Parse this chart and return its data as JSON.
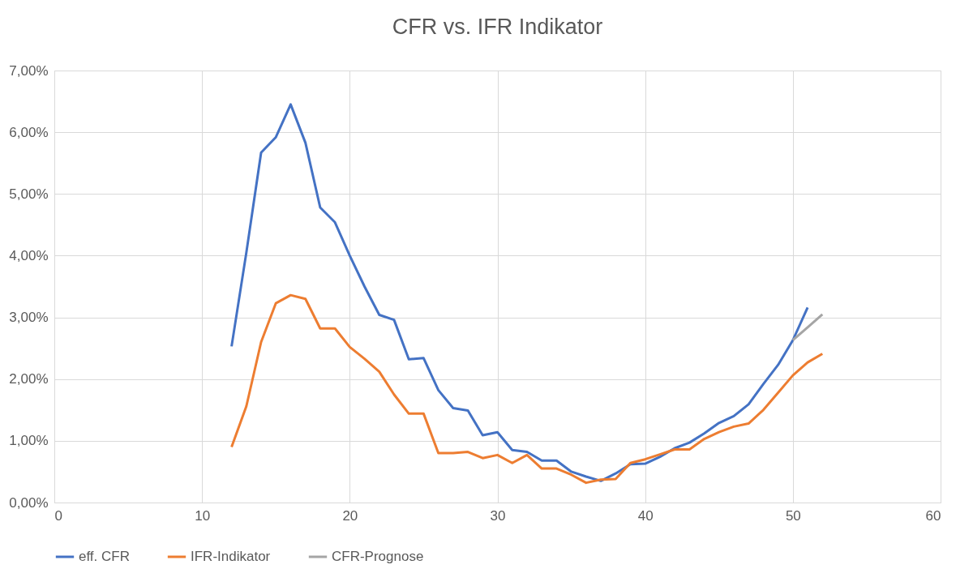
{
  "chart_data": {
    "type": "line",
    "title": "CFR vs. IFR Indikator",
    "xlim": [
      0,
      60
    ],
    "xticks": [
      0,
      10,
      20,
      30,
      40,
      50,
      60
    ],
    "ylim": [
      0,
      7
    ],
    "yticks": [
      {
        "value": 0,
        "label": "0,00%"
      },
      {
        "value": 1,
        "label": "1,00%"
      },
      {
        "value": 2,
        "label": "2,00%"
      },
      {
        "value": 3,
        "label": "3,00%"
      },
      {
        "value": 4,
        "label": "4,00%"
      },
      {
        "value": 5,
        "label": "5,00%"
      },
      {
        "value": 6,
        "label": "6,00%"
      },
      {
        "value": 7,
        "label": "7,00%"
      }
    ],
    "grid": true,
    "legend": "bottom",
    "marker": "none",
    "line_style": "solid",
    "series": [
      {
        "name": "eff. CFR",
        "color": "#4472c4",
        "x": [
          12,
          13,
          14,
          15,
          16,
          17,
          18,
          19,
          20,
          21,
          22,
          23,
          24,
          25,
          26,
          27,
          28,
          29,
          30,
          31,
          32,
          33,
          34,
          35,
          36,
          37,
          38,
          39,
          40,
          41,
          42,
          43,
          44,
          45,
          46,
          47,
          48,
          49,
          50,
          51
        ],
        "values": [
          2.53,
          4.05,
          5.67,
          5.92,
          6.45,
          5.83,
          4.78,
          4.54,
          4.0,
          3.5,
          3.04,
          2.96,
          2.32,
          2.34,
          1.82,
          1.53,
          1.49,
          1.09,
          1.14,
          0.85,
          0.82,
          0.68,
          0.68,
          0.5,
          0.42,
          0.35,
          0.47,
          0.62,
          0.63,
          0.74,
          0.88,
          0.97,
          1.12,
          1.29,
          1.4,
          1.59,
          1.92,
          2.23,
          2.63,
          3.16
        ]
      },
      {
        "name": "IFR-Indikator",
        "color": "#ed7d31",
        "x": [
          12,
          13,
          14,
          15,
          16,
          17,
          18,
          19,
          20,
          21,
          22,
          23,
          24,
          25,
          26,
          27,
          28,
          29,
          30,
          31,
          32,
          33,
          34,
          35,
          36,
          37,
          38,
          39,
          40,
          41,
          42,
          43,
          44,
          45,
          46,
          47,
          48,
          49,
          50,
          51,
          52
        ],
        "values": [
          0.9,
          1.56,
          2.6,
          3.23,
          3.36,
          3.3,
          2.82,
          2.82,
          2.52,
          2.33,
          2.12,
          1.75,
          1.44,
          1.44,
          0.8,
          0.8,
          0.82,
          0.72,
          0.77,
          0.64,
          0.77,
          0.55,
          0.55,
          0.45,
          0.32,
          0.37,
          0.38,
          0.64,
          0.7,
          0.78,
          0.86,
          0.86,
          1.03,
          1.14,
          1.23,
          1.28,
          1.5,
          1.78,
          2.06,
          2.27,
          2.41
        ]
      },
      {
        "name": "CFR-Prognose",
        "color": "#a5a5a5",
        "x": [
          50,
          51,
          52
        ],
        "values": [
          2.63,
          2.84,
          3.05
        ]
      }
    ]
  }
}
